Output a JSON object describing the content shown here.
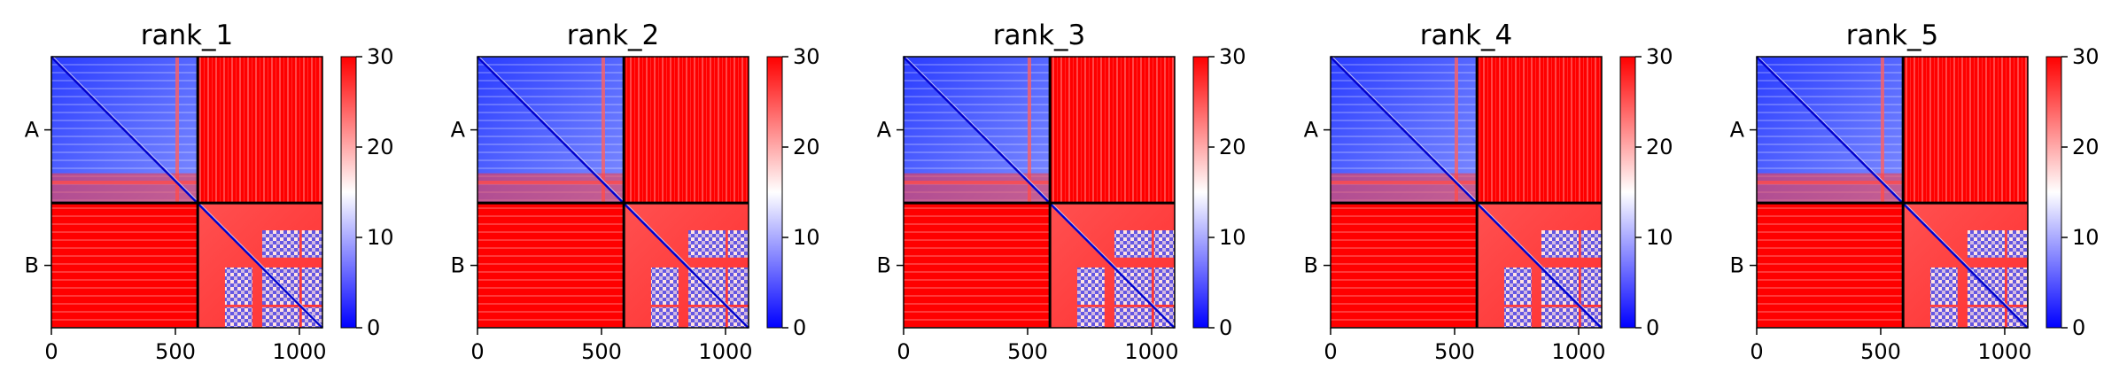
{
  "chart_data": [
    {
      "type": "heatmap",
      "title": "rank_1",
      "chains": [
        {
          "name": "A",
          "start": 0,
          "end": 590
        },
        {
          "name": "B",
          "start": 590,
          "end": 1093
        }
      ],
      "xlim": [
        0,
        1093
      ],
      "xticks": [
        0,
        500,
        1000
      ],
      "colorbar": {
        "range": [
          0,
          30
        ],
        "ticks": [
          0,
          10,
          20,
          30
        ],
        "colors": [
          "#0000ff",
          "#ffffff",
          "#ff0000"
        ]
      }
    },
    {
      "type": "heatmap",
      "title": "rank_2",
      "chains": [
        {
          "name": "A",
          "start": 0,
          "end": 590
        },
        {
          "name": "B",
          "start": 590,
          "end": 1093
        }
      ],
      "xlim": [
        0,
        1093
      ],
      "xticks": [
        0,
        500,
        1000
      ],
      "colorbar": {
        "range": [
          0,
          30
        ],
        "ticks": [
          0,
          10,
          20,
          30
        ],
        "colors": [
          "#0000ff",
          "#ffffff",
          "#ff0000"
        ]
      }
    },
    {
      "type": "heatmap",
      "title": "rank_3",
      "chains": [
        {
          "name": "A",
          "start": 0,
          "end": 590
        },
        {
          "name": "B",
          "start": 590,
          "end": 1093
        }
      ],
      "xlim": [
        0,
        1093
      ],
      "xticks": [
        0,
        500,
        1000
      ],
      "colorbar": {
        "range": [
          0,
          30
        ],
        "ticks": [
          0,
          10,
          20,
          30
        ],
        "colors": [
          "#0000ff",
          "#ffffff",
          "#ff0000"
        ]
      }
    },
    {
      "type": "heatmap",
      "title": "rank_4",
      "chains": [
        {
          "name": "A",
          "start": 0,
          "end": 590
        },
        {
          "name": "B",
          "start": 590,
          "end": 1093
        }
      ],
      "xlim": [
        0,
        1093
      ],
      "xticks": [
        0,
        500,
        1000
      ],
      "colorbar": {
        "range": [
          0,
          30
        ],
        "ticks": [
          0,
          10,
          20,
          30
        ],
        "colors": [
          "#0000ff",
          "#ffffff",
          "#ff0000"
        ]
      }
    },
    {
      "type": "heatmap",
      "title": "rank_5",
      "chains": [
        {
          "name": "A",
          "start": 0,
          "end": 590
        },
        {
          "name": "B",
          "start": 590,
          "end": 1093
        }
      ],
      "xlim": [
        0,
        1093
      ],
      "xticks": [
        0,
        500,
        1000
      ],
      "colorbar": {
        "range": [
          0,
          30
        ],
        "ticks": [
          0,
          10,
          20,
          30
        ],
        "colors": [
          "#0000ff",
          "#ffffff",
          "#ff0000"
        ]
      }
    }
  ]
}
